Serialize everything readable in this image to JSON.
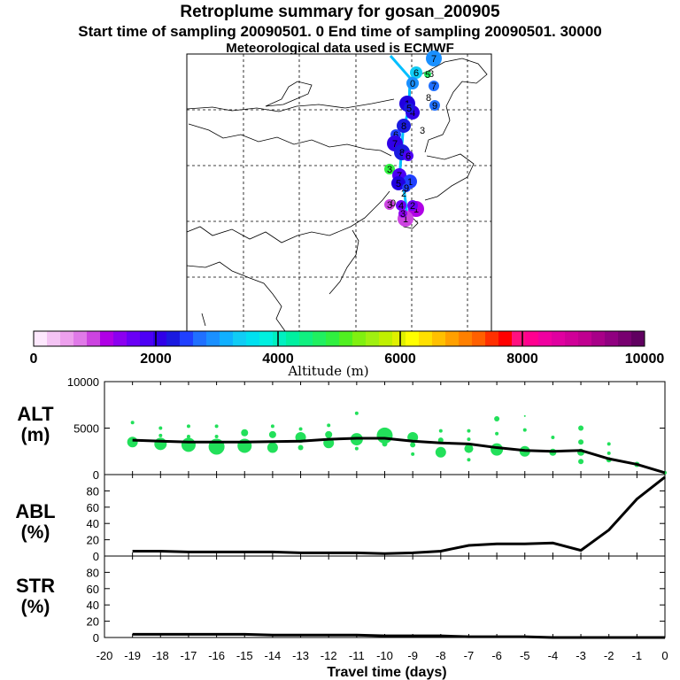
{
  "header": {
    "title": "Retroplume summary for gosan_200905",
    "sampling": "Start time of sampling 20090501.    0     End time of sampling 20090501. 30000",
    "met": "Meteorological data used is ECMWF"
  },
  "colors": {
    "plume_track": "#00bfff",
    "scatter": "#22e05a",
    "line": "#000000"
  },
  "map": {
    "marker_labels": [
      "7",
      "8",
      "6",
      "5",
      "0",
      "7",
      "8",
      "9",
      "1",
      "4",
      "5",
      "3",
      "8",
      "6",
      "7",
      "8",
      "6",
      "3",
      "7",
      "1",
      "5",
      "9",
      "2",
      "3",
      "4",
      "1",
      "2",
      "1",
      "0",
      "3"
    ]
  },
  "chart_data": [
    {
      "type": "colorbar",
      "title": "Altitude (m)",
      "range": [
        0,
        10000
      ],
      "tick_labels": [
        "0",
        "2000",
        "4000",
        "6000",
        "8000",
        "10000"
      ],
      "colors": [
        "#fde8fd",
        "#f4c4f4",
        "#eda0ed",
        "#e07ae8",
        "#cc44e0",
        "#b000e6",
        "#8c00f0",
        "#6a00f5",
        "#4d00f5",
        "#3000e8",
        "#1a1ae0",
        "#2040ff",
        "#2070ff",
        "#1a90ff",
        "#10b0ff",
        "#10ccf5",
        "#00e0f0",
        "#00f0e0",
        "#00f0c0",
        "#00f0a0",
        "#10f080",
        "#20f060",
        "#30f040",
        "#50f020",
        "#80f010",
        "#a0f010",
        "#c0f000",
        "#e0f000",
        "#ffff00",
        "#ffe000",
        "#ffc000",
        "#ffa000",
        "#ff8000",
        "#ff6000",
        "#ff3000",
        "#ff0000",
        "#ff1080",
        "#ff0090",
        "#f000a0",
        "#e000a0",
        "#d00098",
        "#c00090",
        "#a80088",
        "#900080",
        "#780070",
        "#600060"
      ]
    },
    {
      "type": "scatter+line",
      "panel_label": "ALT",
      "unit": "(m)",
      "xlabel": "Travel time (days)",
      "xlim": [
        -20,
        0
      ],
      "ylim": [
        0,
        10000
      ],
      "yticks": [
        "10000",
        "5000",
        "0"
      ],
      "line_x": [
        -19,
        -18,
        -17,
        -16,
        -15,
        -14,
        -13,
        -12,
        -11,
        -10,
        -9,
        -8,
        -7,
        -6,
        -5,
        -4,
        -3,
        -2,
        -1,
        0
      ],
      "line_y": [
        3700,
        3600,
        3500,
        3500,
        3500,
        3550,
        3600,
        3800,
        3900,
        3900,
        3600,
        3400,
        3300,
        2900,
        2600,
        2500,
        2600,
        1700,
        1100,
        200
      ],
      "points": [
        {
          "x": -19,
          "y": 5600,
          "s": 2
        },
        {
          "x": -19,
          "y": 3500,
          "s": 6
        },
        {
          "x": -18,
          "y": 5000,
          "s": 2
        },
        {
          "x": -18,
          "y": 4200,
          "s": 2
        },
        {
          "x": -18,
          "y": 3300,
          "s": 7
        },
        {
          "x": -17,
          "y": 5200,
          "s": 2
        },
        {
          "x": -17,
          "y": 4100,
          "s": 2
        },
        {
          "x": -17,
          "y": 3200,
          "s": 8
        },
        {
          "x": -16,
          "y": 5200,
          "s": 2
        },
        {
          "x": -16,
          "y": 4100,
          "s": 2
        },
        {
          "x": -16,
          "y": 3000,
          "s": 9
        },
        {
          "x": -15,
          "y": 4500,
          "s": 4
        },
        {
          "x": -15,
          "y": 3100,
          "s": 8
        },
        {
          "x": -14,
          "y": 5200,
          "s": 2
        },
        {
          "x": -14,
          "y": 4300,
          "s": 4
        },
        {
          "x": -14,
          "y": 2900,
          "s": 6
        },
        {
          "x": -13,
          "y": 4900,
          "s": 2
        },
        {
          "x": -13,
          "y": 4000,
          "s": 6
        },
        {
          "x": -13,
          "y": 2900,
          "s": 3
        },
        {
          "x": -12,
          "y": 5300,
          "s": 2
        },
        {
          "x": -12,
          "y": 4300,
          "s": 4
        },
        {
          "x": -12,
          "y": 3400,
          "s": 6
        },
        {
          "x": -11,
          "y": 6600,
          "s": 2
        },
        {
          "x": -11,
          "y": 3800,
          "s": 7
        },
        {
          "x": -11,
          "y": 2800,
          "s": 2
        },
        {
          "x": -10,
          "y": 4200,
          "s": 9
        },
        {
          "x": -10,
          "y": 3300,
          "s": 3
        },
        {
          "x": -9,
          "y": 4000,
          "s": 6
        },
        {
          "x": -9,
          "y": 3200,
          "s": 3
        },
        {
          "x": -9,
          "y": 2200,
          "s": 2
        },
        {
          "x": -8,
          "y": 4700,
          "s": 2
        },
        {
          "x": -8,
          "y": 3700,
          "s": 3
        },
        {
          "x": -8,
          "y": 2400,
          "s": 6
        },
        {
          "x": -7,
          "y": 4700,
          "s": 2
        },
        {
          "x": -7,
          "y": 3800,
          "s": 2
        },
        {
          "x": -7,
          "y": 2800,
          "s": 5
        },
        {
          "x": -7,
          "y": 1600,
          "s": 2
        },
        {
          "x": -6,
          "y": 6000,
          "s": 3
        },
        {
          "x": -6,
          "y": 4400,
          "s": 2
        },
        {
          "x": -6,
          "y": 2700,
          "s": 7
        },
        {
          "x": -5,
          "y": 6300,
          "s": 1
        },
        {
          "x": -5,
          "y": 4800,
          "s": 2
        },
        {
          "x": -5,
          "y": 2500,
          "s": 6
        },
        {
          "x": -4,
          "y": 4000,
          "s": 2
        },
        {
          "x": -4,
          "y": 2400,
          "s": 4
        },
        {
          "x": -3,
          "y": 5000,
          "s": 3
        },
        {
          "x": -3,
          "y": 3500,
          "s": 3
        },
        {
          "x": -3,
          "y": 2400,
          "s": 4
        },
        {
          "x": -3,
          "y": 1400,
          "s": 3
        },
        {
          "x": -2,
          "y": 3300,
          "s": 2
        },
        {
          "x": -2,
          "y": 2300,
          "s": 2
        },
        {
          "x": -2,
          "y": 1600,
          "s": 3
        },
        {
          "x": -1,
          "y": 1100,
          "s": 3
        },
        {
          "x": 0,
          "y": 200,
          "s": 2
        }
      ]
    },
    {
      "type": "line",
      "panel_label": "ABL",
      "unit": "(%)",
      "xlim": [
        -20,
        0
      ],
      "ylim": [
        0,
        100
      ],
      "yticks": [
        "80",
        "60",
        "40",
        "20",
        "0"
      ],
      "x": [
        -19,
        -18,
        -17,
        -16,
        -15,
        -14,
        -13,
        -12,
        -11,
        -10,
        -9,
        -8,
        -7,
        -6,
        -5,
        -4,
        -3,
        -2,
        -1,
        0
      ],
      "y": [
        6,
        6,
        5,
        5,
        5,
        5,
        4,
        4,
        4,
        3,
        4,
        6,
        13,
        15,
        15,
        16,
        7,
        32,
        70,
        97
      ]
    },
    {
      "type": "line",
      "panel_label": "STR",
      "unit": "(%)",
      "xlim": [
        -20,
        0
      ],
      "ylim": [
        0,
        100
      ],
      "yticks": [
        "80",
        "60",
        "40",
        "20",
        "0"
      ],
      "xticks": [
        "-20",
        "-19",
        "-18",
        "-17",
        "-16",
        "-15",
        "-14",
        "-13",
        "-12",
        "-11",
        "-10",
        "-9",
        "-8",
        "-7",
        "-6",
        "-5",
        "-4",
        "-3",
        "-2",
        "-1",
        "0"
      ],
      "x": [
        -19,
        -18,
        -17,
        -16,
        -15,
        -14,
        -13,
        -12,
        -11,
        -10,
        -9,
        -8,
        -7,
        -6,
        -5,
        -4,
        -3,
        -2,
        -1,
        0
      ],
      "y": [
        4,
        4,
        4,
        4,
        4,
        3,
        3,
        3,
        3,
        2,
        2,
        2,
        1,
        1,
        1,
        0,
        0,
        0,
        0,
        0
      ]
    }
  ]
}
